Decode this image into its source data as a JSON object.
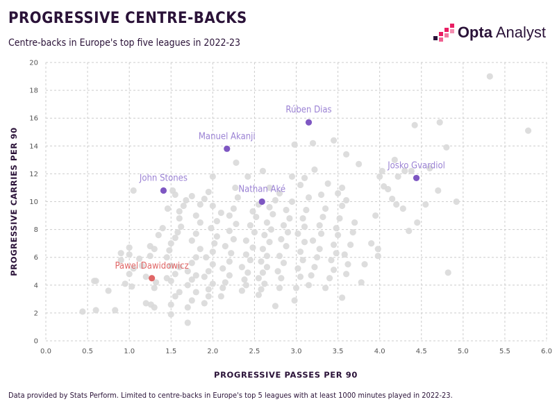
{
  "header": {
    "title": "PROGRESSIVE CENTRE-BACKS",
    "subtitle": "Centre-backs in Europe's top five leagues in 2022-23"
  },
  "logo": {
    "brand_bold": "Opta",
    "brand_light": "Analyst"
  },
  "footer": {
    "note": "Data provided by Stats Perform. Limited to centre-backs in Europe's top 5 leagues with at least 1000 minutes played in 2022-23."
  },
  "colors": {
    "background_point": "#d9d9d9",
    "highlight_purple": "#7e57c2",
    "label_purple": "#9b82d4",
    "highlight_red": "#e06666",
    "label_red": "#e06666",
    "grid": "#cccccc",
    "text": "#2a1238",
    "logo_pink": "#e91e63"
  },
  "chart_data": {
    "type": "scatter",
    "title": "PROGRESSIVE CENTRE-BACKS",
    "xlabel": "PROGRESSIVE PASSES PER 90",
    "ylabel": "PROGRESSIVE CARRIES PER 90",
    "xlim": [
      0,
      6
    ],
    "ylim": [
      0,
      20
    ],
    "xticks": [
      "0.0",
      "0.5",
      "1.0",
      "1.5",
      "2.0",
      "2.5",
      "3.0",
      "3.5",
      "4.0",
      "4.5",
      "5.0",
      "5.5",
      "6.0"
    ],
    "yticks": [
      "0",
      "2",
      "4",
      "6",
      "8",
      "10",
      "12",
      "14",
      "16",
      "18",
      "20"
    ],
    "grid": true,
    "highlighted": [
      {
        "name": "Rúben Dias",
        "x": 3.15,
        "y": 15.7,
        "color": "purple",
        "label_pos": "above"
      },
      {
        "name": "Manuel Akanji",
        "x": 2.17,
        "y": 13.8,
        "color": "purple",
        "label_pos": "above"
      },
      {
        "name": "John Stones",
        "x": 1.41,
        "y": 10.8,
        "color": "purple",
        "label_pos": "above"
      },
      {
        "name": "Nathan Aké",
        "x": 2.59,
        "y": 10.0,
        "color": "purple",
        "label_pos": "above"
      },
      {
        "name": "Josko Gvardiol",
        "x": 4.44,
        "y": 11.7,
        "color": "purple",
        "label_pos": "above"
      },
      {
        "name": "Pawel Dawidowicz",
        "x": 1.27,
        "y": 4.5,
        "color": "red",
        "label_pos": "above"
      }
    ],
    "background_points": [
      [
        0.44,
        2.1
      ],
      [
        0.6,
        2.2
      ],
      [
        0.83,
        2.2
      ],
      [
        0.6,
        4.3
      ],
      [
        0.58,
        4.3
      ],
      [
        0.75,
        3.6
      ],
      [
        0.95,
        4.1
      ],
      [
        1.03,
        3.9
      ],
      [
        1.0,
        4.8
      ],
      [
        1.05,
        5.2
      ],
      [
        0.9,
        5.8
      ],
      [
        0.9,
        6.3
      ],
      [
        1.0,
        6.2
      ],
      [
        1.0,
        6.7
      ],
      [
        1.05,
        10.8
      ],
      [
        1.2,
        2.7
      ],
      [
        1.26,
        2.6
      ],
      [
        1.3,
        2.4
      ],
      [
        1.3,
        3.8
      ],
      [
        1.32,
        4.2
      ],
      [
        1.2,
        4.6
      ],
      [
        1.15,
        5.4
      ],
      [
        1.12,
        5.9
      ],
      [
        1.25,
        6.1
      ],
      [
        1.25,
        6.8
      ],
      [
        1.3,
        6.6
      ],
      [
        1.35,
        7.6
      ],
      [
        1.4,
        8.1
      ],
      [
        1.46,
        9.5
      ],
      [
        1.52,
        10.8
      ],
      [
        1.5,
        1.9
      ],
      [
        1.5,
        2.6
      ],
      [
        1.55,
        3.2
      ],
      [
        1.6,
        3.5
      ],
      [
        1.5,
        4.3
      ],
      [
        1.45,
        4.5
      ],
      [
        1.55,
        4.8
      ],
      [
        1.6,
        5.3
      ],
      [
        1.5,
        5.4
      ],
      [
        1.45,
        6.0
      ],
      [
        1.48,
        6.5
      ],
      [
        1.5,
        7.0
      ],
      [
        1.55,
        7.4
      ],
      [
        1.58,
        7.8
      ],
      [
        1.62,
        8.2
      ],
      [
        1.6,
        8.8
      ],
      [
        1.6,
        9.3
      ],
      [
        1.65,
        9.7
      ],
      [
        1.68,
        10.1
      ],
      [
        1.55,
        10.5
      ],
      [
        1.7,
        1.3
      ],
      [
        1.7,
        2.4
      ],
      [
        1.75,
        2.9
      ],
      [
        1.8,
        3.5
      ],
      [
        1.7,
        4.0
      ],
      [
        1.75,
        4.4
      ],
      [
        1.8,
        4.7
      ],
      [
        1.7,
        5.0
      ],
      [
        1.75,
        5.6
      ],
      [
        1.8,
        6.0
      ],
      [
        1.85,
        6.6
      ],
      [
        1.75,
        7.2
      ],
      [
        1.8,
        7.7
      ],
      [
        1.85,
        8.5
      ],
      [
        1.8,
        9.0
      ],
      [
        1.85,
        9.8
      ],
      [
        1.9,
        10.2
      ],
      [
        1.75,
        10.4
      ],
      [
        1.95,
        10.7
      ],
      [
        1.9,
        2.7
      ],
      [
        1.95,
        3.2
      ],
      [
        1.95,
        3.7
      ],
      [
        2.0,
        4.1
      ],
      [
        1.9,
        4.6
      ],
      [
        1.95,
        5.0
      ],
      [
        2.0,
        5.5
      ],
      [
        1.92,
        6.0
      ],
      [
        2.0,
        6.4
      ],
      [
        2.02,
        7.0
      ],
      [
        2.05,
        7.5
      ],
      [
        1.98,
        8.1
      ],
      [
        2.05,
        8.6
      ],
      [
        2.1,
        9.2
      ],
      [
        2.0,
        9.7
      ],
      [
        2.0,
        11.8
      ],
      [
        2.1,
        3.2
      ],
      [
        2.12,
        3.8
      ],
      [
        2.15,
        4.2
      ],
      [
        2.2,
        4.7
      ],
      [
        2.12,
        5.2
      ],
      [
        2.2,
        5.7
      ],
      [
        2.22,
        6.3
      ],
      [
        2.15,
        6.8
      ],
      [
        2.25,
        7.3
      ],
      [
        2.2,
        7.9
      ],
      [
        2.28,
        8.4
      ],
      [
        2.2,
        9.0
      ],
      [
        2.25,
        9.5
      ],
      [
        2.3,
        10.3
      ],
      [
        2.27,
        11.0
      ],
      [
        2.28,
        12.8
      ],
      [
        2.35,
        3.6
      ],
      [
        2.4,
        4.0
      ],
      [
        2.38,
        4.4
      ],
      [
        2.42,
        4.9
      ],
      [
        2.35,
        5.3
      ],
      [
        2.45,
        5.8
      ],
      [
        2.4,
        6.2
      ],
      [
        2.48,
        6.7
      ],
      [
        2.4,
        7.2
      ],
      [
        2.5,
        7.8
      ],
      [
        2.45,
        8.3
      ],
      [
        2.52,
        8.9
      ],
      [
        2.48,
        9.3
      ],
      [
        2.55,
        9.8
      ],
      [
        2.42,
        11.8
      ],
      [
        2.55,
        3.3
      ],
      [
        2.58,
        3.7
      ],
      [
        2.62,
        4.1
      ],
      [
        2.55,
        4.5
      ],
      [
        2.6,
        4.9
      ],
      [
        2.65,
        5.3
      ],
      [
        2.58,
        5.7
      ],
      [
        2.65,
        6.1
      ],
      [
        2.6,
        6.6
      ],
      [
        2.68,
        7.1
      ],
      [
        2.62,
        7.6
      ],
      [
        2.7,
        8.0
      ],
      [
        2.65,
        8.5
      ],
      [
        2.72,
        9.1
      ],
      [
        2.68,
        9.6
      ],
      [
        2.75,
        10.1
      ],
      [
        2.6,
        12.2
      ],
      [
        2.68,
        11.0
      ],
      [
        2.75,
        2.5
      ],
      [
        2.8,
        3.8
      ],
      [
        2.82,
        4.5
      ],
      [
        2.78,
        5.0
      ],
      [
        2.85,
        5.6
      ],
      [
        2.8,
        6.1
      ],
      [
        2.88,
        6.8
      ],
      [
        2.82,
        7.3
      ],
      [
        2.9,
        7.8
      ],
      [
        2.85,
        8.3
      ],
      [
        2.92,
        8.8
      ],
      [
        2.88,
        9.4
      ],
      [
        2.95,
        10.0
      ],
      [
        2.8,
        10.6
      ],
      [
        2.95,
        11.8
      ],
      [
        2.98,
        14.1
      ],
      [
        2.98,
        2.9
      ],
      [
        3.0,
        3.8
      ],
      [
        3.05,
        4.6
      ],
      [
        3.02,
        5.2
      ],
      [
        3.08,
        5.8
      ],
      [
        3.05,
        6.4
      ],
      [
        3.1,
        7.1
      ],
      [
        3.02,
        7.7
      ],
      [
        3.1,
        8.2
      ],
      [
        3.08,
        8.8
      ],
      [
        3.12,
        9.4
      ],
      [
        3.15,
        10.3
      ],
      [
        3.05,
        11.2
      ],
      [
        3.1,
        11.7
      ],
      [
        3.2,
        14.2
      ],
      [
        3.22,
        12.3
      ],
      [
        3.15,
        4.0
      ],
      [
        3.18,
        4.7
      ],
      [
        3.22,
        5.3
      ],
      [
        3.25,
        6.0
      ],
      [
        3.28,
        6.6
      ],
      [
        3.2,
        7.2
      ],
      [
        3.3,
        7.7
      ],
      [
        3.28,
        8.3
      ],
      [
        3.32,
        8.9
      ],
      [
        3.35,
        9.5
      ],
      [
        3.3,
        10.5
      ],
      [
        3.38,
        11.3
      ],
      [
        3.35,
        3.8
      ],
      [
        3.4,
        4.5
      ],
      [
        3.45,
        5.1
      ],
      [
        3.42,
        5.8
      ],
      [
        3.48,
        6.3
      ],
      [
        3.45,
        6.9
      ],
      [
        3.5,
        7.6
      ],
      [
        3.48,
        8.1
      ],
      [
        3.52,
        8.8
      ],
      [
        3.55,
        9.7
      ],
      [
        3.5,
        10.6
      ],
      [
        3.55,
        11.0
      ],
      [
        3.6,
        13.4
      ],
      [
        3.45,
        14.4
      ],
      [
        3.55,
        3.1
      ],
      [
        3.6,
        4.8
      ],
      [
        3.62,
        5.5
      ],
      [
        3.58,
        6.2
      ],
      [
        3.65,
        6.9
      ],
      [
        3.68,
        7.8
      ],
      [
        3.7,
        8.5
      ],
      [
        3.6,
        10.1
      ],
      [
        3.75,
        12.7
      ],
      [
        3.78,
        4.2
      ],
      [
        3.82,
        5.5
      ],
      [
        3.9,
        7.0
      ],
      [
        3.95,
        9.0
      ],
      [
        3.98,
        6.1
      ],
      [
        3.98,
        6.6
      ],
      [
        4.0,
        11.8
      ],
      [
        4.03,
        12.2
      ],
      [
        4.05,
        11.1
      ],
      [
        4.1,
        10.9
      ],
      [
        4.15,
        10.2
      ],
      [
        4.2,
        9.8
      ],
      [
        4.18,
        13.0
      ],
      [
        4.22,
        11.8
      ],
      [
        4.3,
        12.2
      ],
      [
        4.28,
        9.5
      ],
      [
        4.35,
        7.9
      ],
      [
        4.45,
        8.5
      ],
      [
        4.38,
        12.2
      ],
      [
        4.42,
        15.5
      ],
      [
        4.55,
        9.8
      ],
      [
        4.6,
        12.4
      ],
      [
        4.7,
        10.8
      ],
      [
        4.72,
        15.7
      ],
      [
        4.8,
        13.9
      ],
      [
        4.82,
        4.9
      ],
      [
        4.92,
        10.0
      ],
      [
        5.32,
        19.0
      ],
      [
        5.78,
        15.1
      ]
    ]
  }
}
